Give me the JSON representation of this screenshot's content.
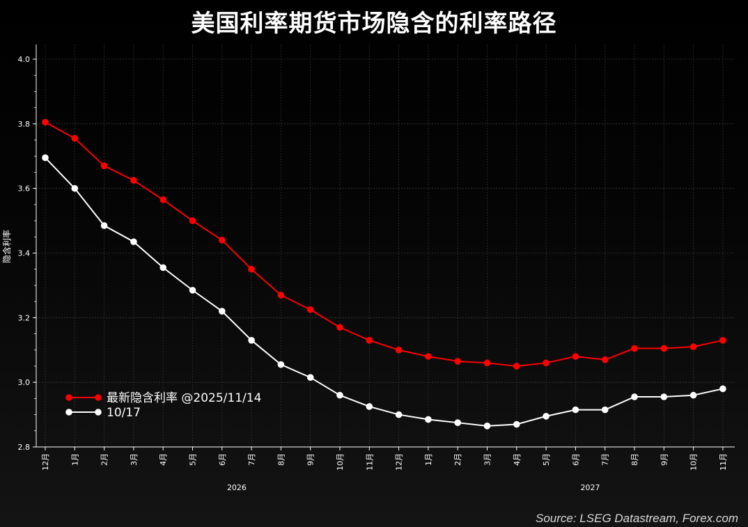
{
  "title": "美国利率期货市场隐含的利率路径",
  "source": "Source: LSEG Datastream, Forex.com",
  "chart_data": {
    "type": "line",
    "ylabel": "隐含利率",
    "ylim": [
      2.8,
      4.0
    ],
    "yticks": [
      "2.8",
      "3.0",
      "3.2",
      "3.4",
      "3.6",
      "3.8",
      "4.0"
    ],
    "categories": [
      "12月",
      "1月",
      "2月",
      "3月",
      "4月",
      "5月",
      "6月",
      "7月",
      "8月",
      "9月",
      "10月",
      "11月",
      "12月",
      "1月",
      "2月",
      "3月",
      "4月",
      "5月",
      "6月",
      "7月",
      "8月",
      "9月",
      "10月",
      "11月"
    ],
    "year_labels": [
      {
        "label": "2026",
        "center_index": 6.5
      },
      {
        "label": "2027",
        "center_index": 18.5
      }
    ],
    "grid": true,
    "legend_position": "lower-left",
    "series": [
      {
        "name": "最新隐含利率 @2025/11/14",
        "color": "#ff0000",
        "values": [
          3.805,
          3.755,
          3.67,
          3.625,
          3.565,
          3.5,
          3.44,
          3.35,
          3.27,
          3.225,
          3.17,
          3.13,
          3.1,
          3.08,
          3.065,
          3.06,
          3.05,
          3.06,
          3.08,
          3.07,
          3.105,
          3.105,
          3.11,
          3.13
        ]
      },
      {
        "name": "10/17",
        "color": "#ffffff",
        "values": [
          3.695,
          3.6,
          3.485,
          3.435,
          3.355,
          3.285,
          3.22,
          3.13,
          3.055,
          3.015,
          2.96,
          2.925,
          2.9,
          2.885,
          2.875,
          2.865,
          2.87,
          2.895,
          2.915,
          2.915,
          2.955,
          2.955,
          2.96,
          2.98
        ]
      }
    ]
  }
}
